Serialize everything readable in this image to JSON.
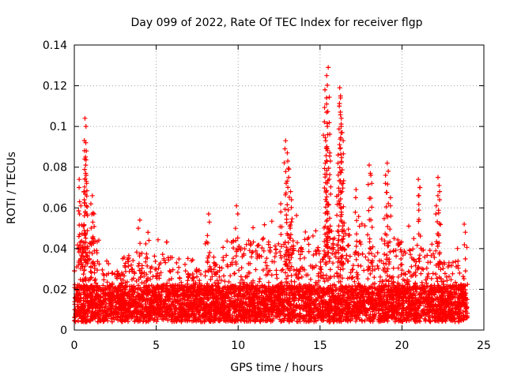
{
  "chart_data": {
    "type": "scatter",
    "title": "Day 099 of 2022, Rate Of TEC Index for receiver flgp",
    "xlabel": "GPS time / hours",
    "ylabel": "ROTI / TECUs",
    "xlim": [
      0,
      25
    ],
    "ylim": [
      0,
      0.14
    ],
    "xticks": [
      0,
      5,
      10,
      15,
      20,
      25
    ],
    "xtick_labels": [
      "0",
      "5",
      "10",
      "15",
      "20",
      "25"
    ],
    "yticks": [
      0,
      0.02,
      0.04,
      0.06,
      0.08,
      0.1,
      0.12,
      0.14
    ],
    "ytick_labels": [
      "0",
      "0.02",
      "0.04",
      "0.06",
      "0.08",
      "0.1",
      "0.12",
      "0.14"
    ],
    "grid": true,
    "marker": "plus",
    "color": "#ff0000",
    "series": [
      {
        "name": "ROTI",
        "notes": "Dense cloud of points sampled across 0-24 h; baseline ~0.005-0.035 TECU with spikes",
        "baseline_range": [
          0.004,
          0.035
        ],
        "spikes": [
          {
            "x": 0.3,
            "y": 0.074
          },
          {
            "x": 0.4,
            "y": 0.061
          },
          {
            "x": 0.6,
            "y": 0.068
          },
          {
            "x": 0.65,
            "y": 0.104
          },
          {
            "x": 0.7,
            "y": 0.092
          },
          {
            "x": 0.68,
            "y": 0.085
          },
          {
            "x": 0.72,
            "y": 0.076
          },
          {
            "x": 1.1,
            "y": 0.066
          },
          {
            "x": 1.2,
            "y": 0.057
          },
          {
            "x": 4.0,
            "y": 0.054
          },
          {
            "x": 4.5,
            "y": 0.048
          },
          {
            "x": 8.2,
            "y": 0.057
          },
          {
            "x": 9.9,
            "y": 0.061
          },
          {
            "x": 12.6,
            "y": 0.062
          },
          {
            "x": 12.9,
            "y": 0.093
          },
          {
            "x": 13.0,
            "y": 0.087
          },
          {
            "x": 13.1,
            "y": 0.079
          },
          {
            "x": 13.2,
            "y": 0.068
          },
          {
            "x": 15.3,
            "y": 0.118
          },
          {
            "x": 15.4,
            "y": 0.111
          },
          {
            "x": 15.5,
            "y": 0.129
          },
          {
            "x": 15.45,
            "y": 0.1
          },
          {
            "x": 15.35,
            "y": 0.093
          },
          {
            "x": 15.6,
            "y": 0.087
          },
          {
            "x": 16.2,
            "y": 0.119
          },
          {
            "x": 16.25,
            "y": 0.114
          },
          {
            "x": 16.3,
            "y": 0.104
          },
          {
            "x": 16.35,
            "y": 0.097
          },
          {
            "x": 16.1,
            "y": 0.086
          },
          {
            "x": 16.4,
            "y": 0.072
          },
          {
            "x": 18.0,
            "y": 0.081
          },
          {
            "x": 18.1,
            "y": 0.076
          },
          {
            "x": 17.2,
            "y": 0.069
          },
          {
            "x": 19.1,
            "y": 0.082
          },
          {
            "x": 19.0,
            "y": 0.076
          },
          {
            "x": 19.3,
            "y": 0.065
          },
          {
            "x": 21.0,
            "y": 0.074
          },
          {
            "x": 21.1,
            "y": 0.07
          },
          {
            "x": 22.2,
            "y": 0.075
          },
          {
            "x": 22.3,
            "y": 0.068
          },
          {
            "x": 22.1,
            "y": 0.061
          },
          {
            "x": 23.8,
            "y": 0.052
          }
        ]
      }
    ]
  }
}
